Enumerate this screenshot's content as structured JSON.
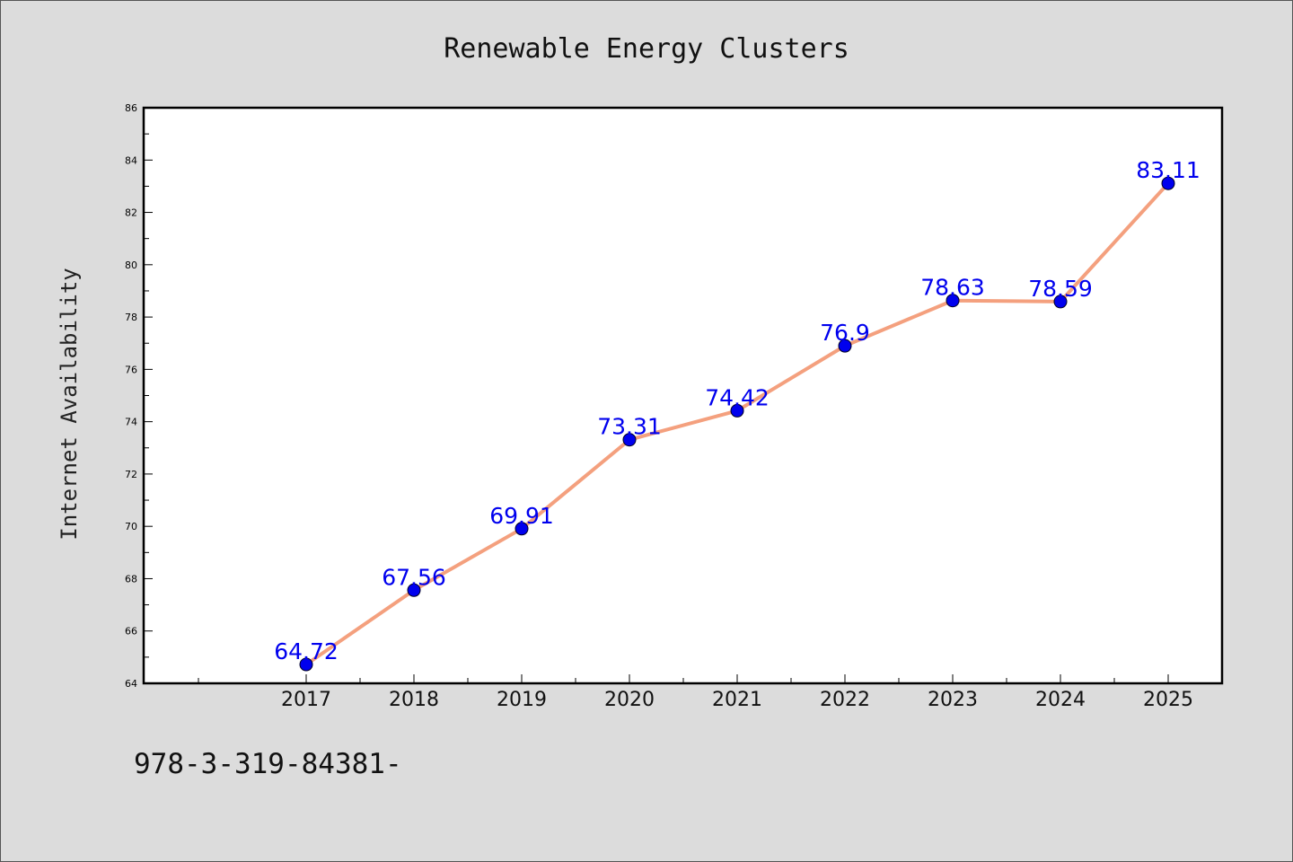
{
  "chart_data": {
    "type": "line",
    "title": "Renewable Energy Clusters",
    "xlabel": "",
    "ylabel": "Internet Availability",
    "categories": [
      "2017",
      "2018",
      "2019",
      "2020",
      "2021",
      "2022",
      "2023",
      "2024",
      "2025"
    ],
    "series": [
      {
        "values": [
          64.72,
          67.56,
          69.91,
          73.31,
          74.42,
          76.9,
          78.63,
          78.59,
          83.11
        ],
        "data_labels": [
          "64.72",
          "67.56",
          "69.91",
          "73.31",
          "74.42",
          "76.9",
          "78.63",
          "78.59",
          "83.11"
        ]
      }
    ],
    "ylim": [
      64,
      86
    ],
    "yticks": [
      "64",
      "66",
      "68",
      "70",
      "72",
      "74",
      "76",
      "78",
      "80",
      "82",
      "84",
      "86"
    ],
    "grid": false,
    "colors": {
      "line": "#f4a07e",
      "marker": "#0000ee",
      "label": "#0000ee",
      "background": "#dcdcdc",
      "plot_area": "#ffffff"
    }
  },
  "footer": {
    "text": "978-3-319-84381-"
  }
}
